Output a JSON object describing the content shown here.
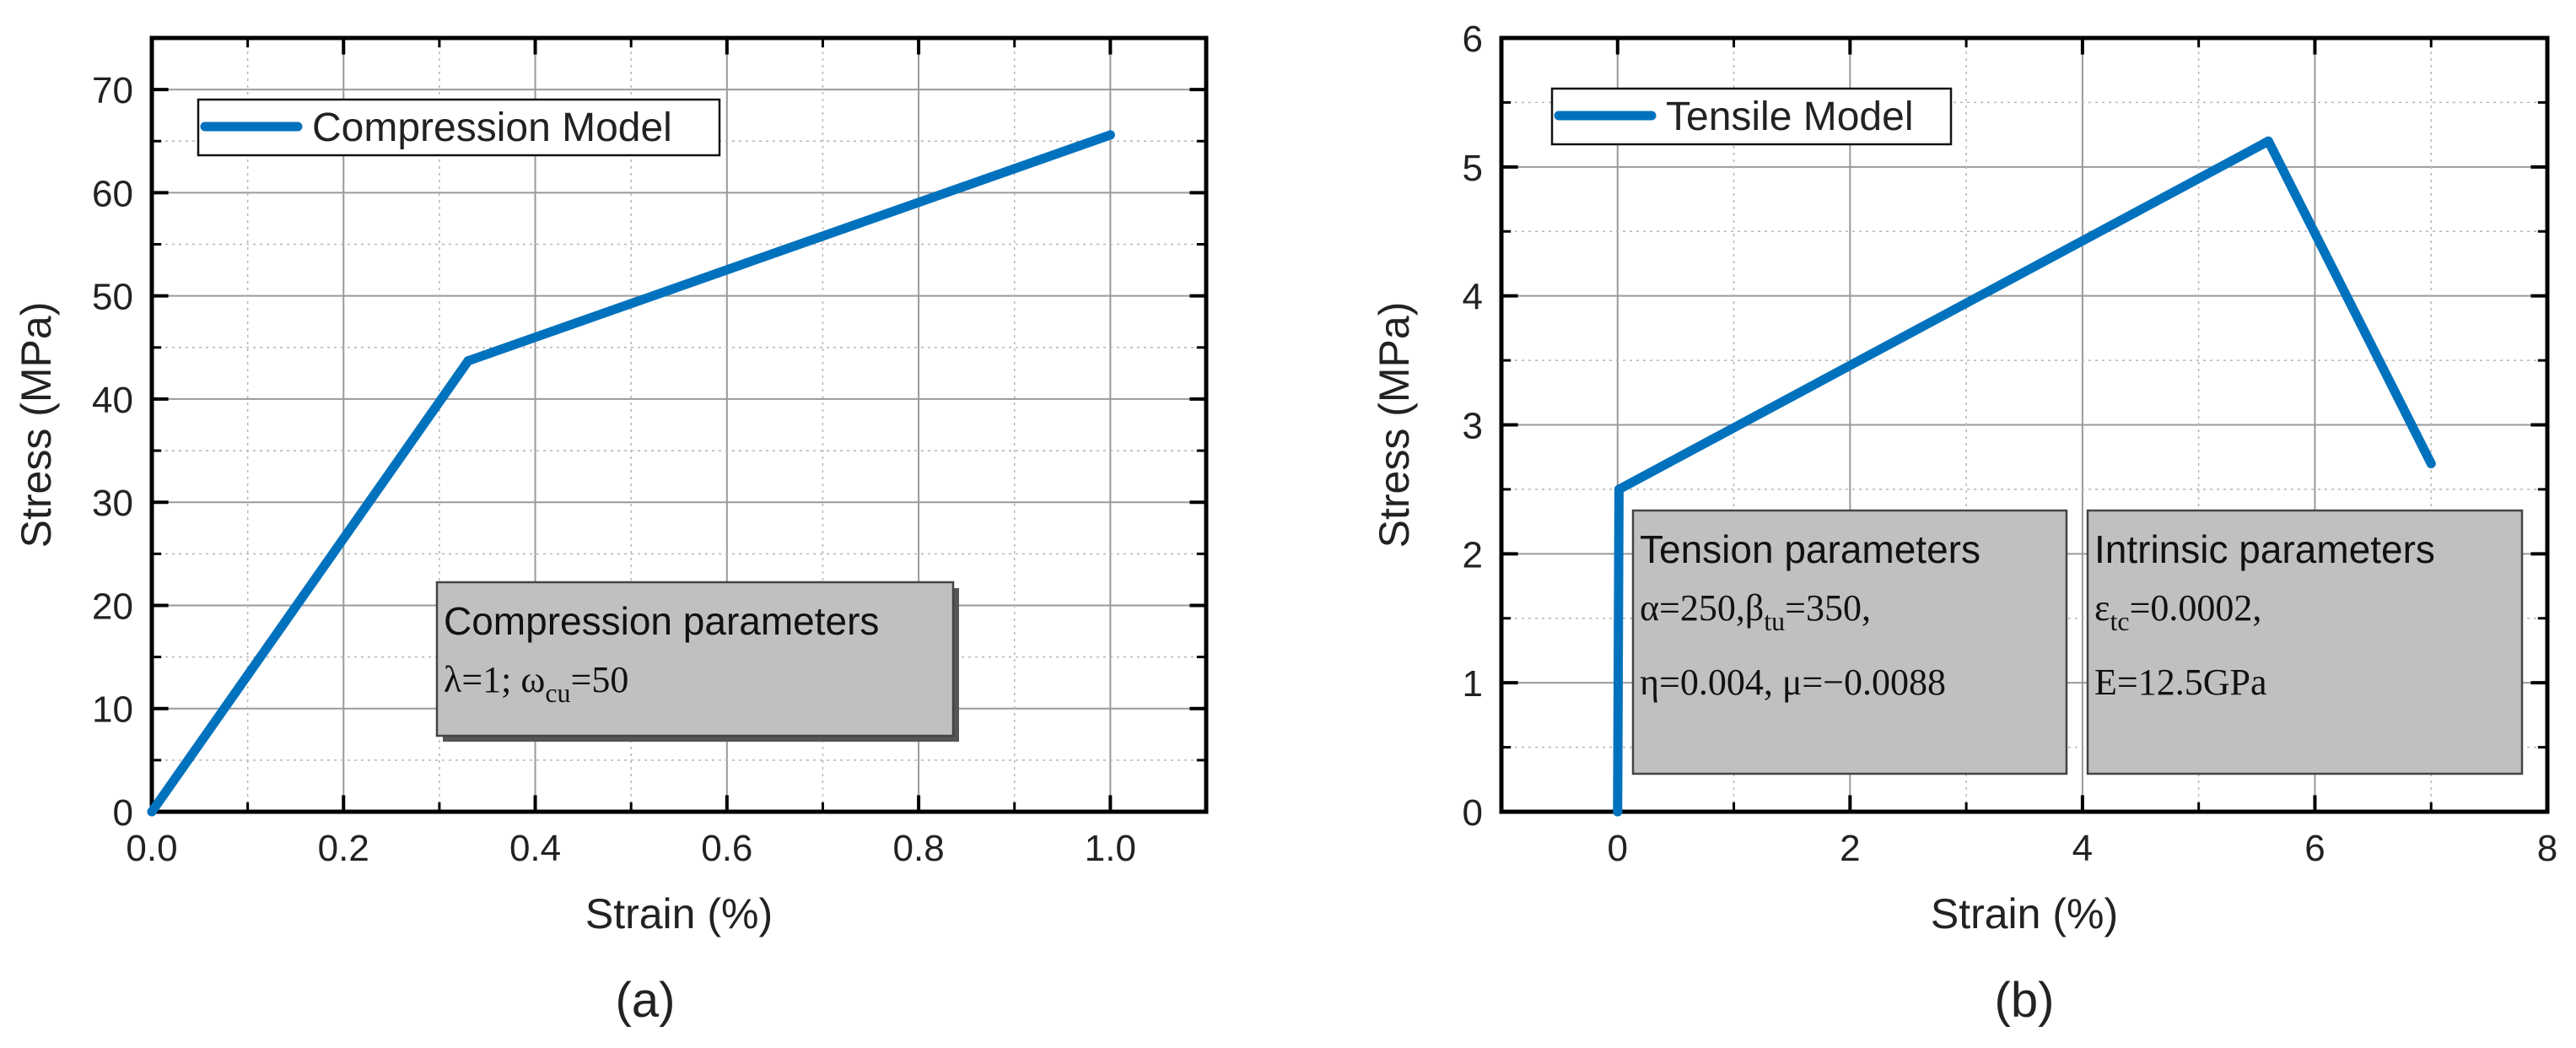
{
  "chart_data": [
    {
      "type": "line",
      "panel_label": "(a)",
      "xlabel": "Strain (%)",
      "ylabel": "Stress (MPa)",
      "xlim": [
        0,
        1.1
      ],
      "ylim": [
        0,
        75
      ],
      "xticks": [
        "0.0",
        "0.2",
        "0.4",
        "0.6",
        "0.8",
        "1.0"
      ],
      "yticks": [
        "0",
        "10",
        "20",
        "30",
        "40",
        "50",
        "60",
        "70"
      ],
      "grid": true,
      "series": [
        {
          "name": "Compression Model",
          "x": [
            0,
            0.33,
            1.0
          ],
          "y": [
            0,
            43.7,
            65.6
          ]
        }
      ],
      "legend": {
        "label": "Compression Model",
        "placement": "top-left"
      },
      "annotations": [
        {
          "title": "Compression parameters",
          "lines": [
            [
              "λ=1; ω",
              "cu",
              "=50"
            ]
          ]
        }
      ]
    },
    {
      "type": "line",
      "panel_label": "(b)",
      "xlabel": "Strain (%)",
      "ylabel": "Stress (MPa)",
      "xlim": [
        -1,
        8
      ],
      "ylim": [
        0,
        6
      ],
      "xticks": [
        "0",
        "2",
        "4",
        "6",
        "8"
      ],
      "yticks": [
        "0",
        "1",
        "2",
        "3",
        "4",
        "5",
        "6"
      ],
      "grid": true,
      "series": [
        {
          "name": "Tensile Model",
          "x": [
            0,
            0.012,
            5.6,
            7.0
          ],
          "y": [
            0,
            2.5,
            5.2,
            2.7
          ]
        }
      ],
      "legend": {
        "label": "Tensile Model",
        "placement": "top-left"
      },
      "annotations": [
        {
          "title": "Tension parameters",
          "lines": [
            [
              "α=250,β",
              "tu",
              "=350,"
            ],
            [
              "η=0.004, μ=−0.0088"
            ]
          ]
        },
        {
          "title": "Intrinsic parameters",
          "lines": [
            [
              "ε",
              "tc",
              "=0.0002,"
            ],
            [
              "E=12.5GPa"
            ]
          ]
        }
      ]
    }
  ],
  "colors": {
    "series": "#0072BD",
    "grid": "#9a9a9a",
    "box_fill": "#c0c0c0",
    "axis": "#000000"
  }
}
